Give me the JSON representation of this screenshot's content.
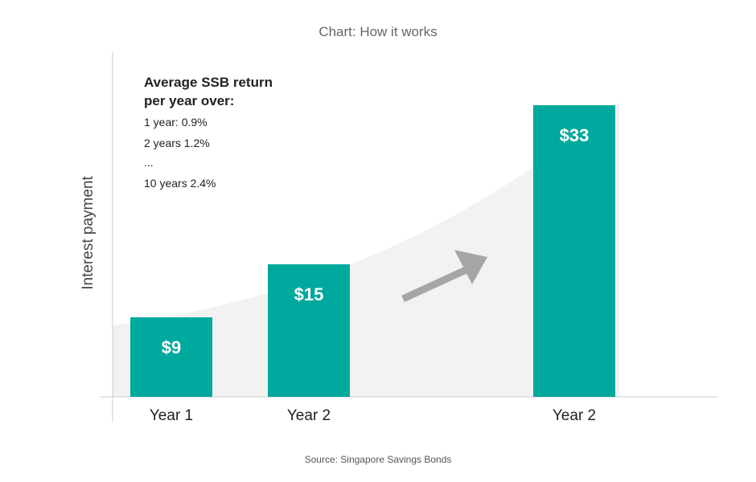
{
  "chart_data": {
    "type": "bar",
    "title": "Chart: How it works",
    "ylabel": "Interest payment",
    "xlabel": "",
    "categories": [
      "Year 1",
      "Year 2",
      "Year 2"
    ],
    "values": [
      9,
      15,
      33
    ],
    "value_labels": [
      "$9",
      "$15",
      "$33"
    ],
    "ylim": [
      0,
      40
    ],
    "grid": false,
    "bar_color": "#00a99d",
    "trend_fill_color": "#f2f2f2",
    "arrow_color": "#a6a6a6",
    "arrow_icon": "up-right-arrow-icon",
    "annotation": {
      "heading": [
        "Average SSB return",
        "per year over:"
      ],
      "lines": [
        "1 year: 0.9%",
        "2 years 1.2%",
        "...",
        "10 years 2.4%"
      ]
    },
    "source": "Source: Singapore Savings Bonds"
  }
}
